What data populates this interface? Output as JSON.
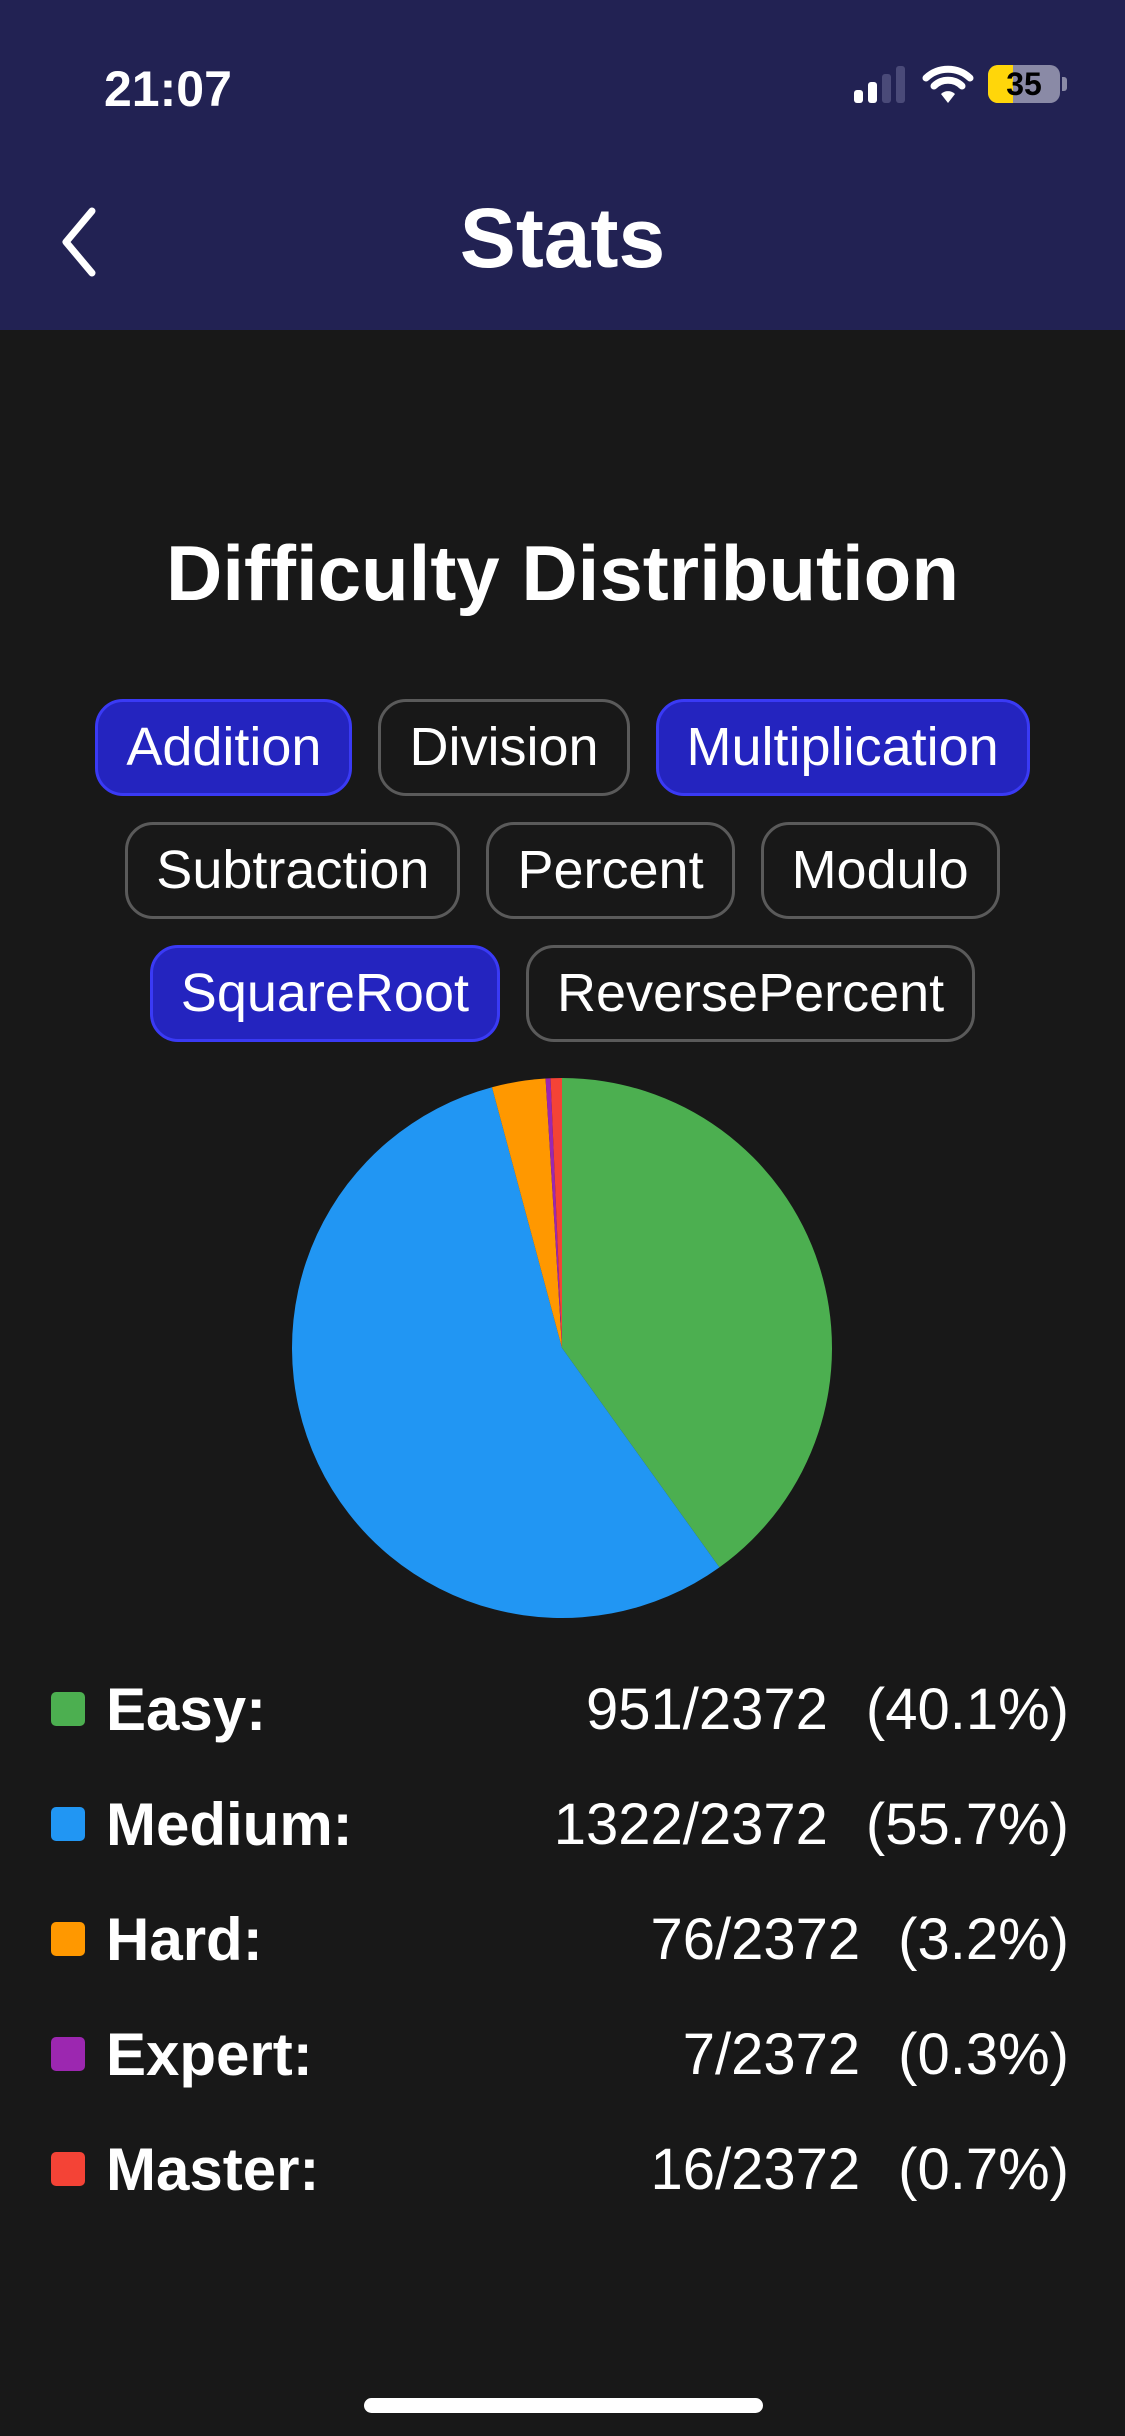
{
  "status_bar": {
    "time": "21:07",
    "battery": "35",
    "battery_level": 35,
    "signal_bars": 2
  },
  "header": {
    "title": "Stats",
    "back_icon": "chevron-left-icon"
  },
  "section": {
    "title": "Difficulty Distribution"
  },
  "filters": [
    {
      "label": "Addition",
      "selected": true
    },
    {
      "label": "Division",
      "selected": false
    },
    {
      "label": "Multiplication",
      "selected": true
    },
    {
      "label": "Subtraction",
      "selected": false
    },
    {
      "label": "Percent",
      "selected": false
    },
    {
      "label": "Modulo",
      "selected": false
    },
    {
      "label": "SquareRoot",
      "selected": true
    },
    {
      "label": "ReversePercent",
      "selected": false
    }
  ],
  "colors": {
    "header_bg": "#222253",
    "selected_chip": "#2424bf"
  },
  "chart_data": {
    "type": "pie",
    "categories": [
      "Easy",
      "Medium",
      "Hard",
      "Expert",
      "Master"
    ],
    "values": [
      951,
      1322,
      76,
      7,
      16
    ],
    "colors": [
      "#4caf50",
      "#2196f3",
      "#ff9800",
      "#9c27b0",
      "#f44336"
    ]
  },
  "legend": [
    {
      "label": "Easy:",
      "value": "951/2372",
      "percent": "(40.1%)"
    },
    {
      "label": "Medium:",
      "value": "1322/2372",
      "percent": "(55.7%)"
    },
    {
      "label": "Hard:",
      "value": "76/2372",
      "percent": "(3.2%)"
    },
    {
      "label": "Expert:",
      "value": "7/2372",
      "percent": "(0.3%)"
    },
    {
      "label": "Master:",
      "value": "16/2372",
      "percent": "(0.7%)"
    }
  ]
}
